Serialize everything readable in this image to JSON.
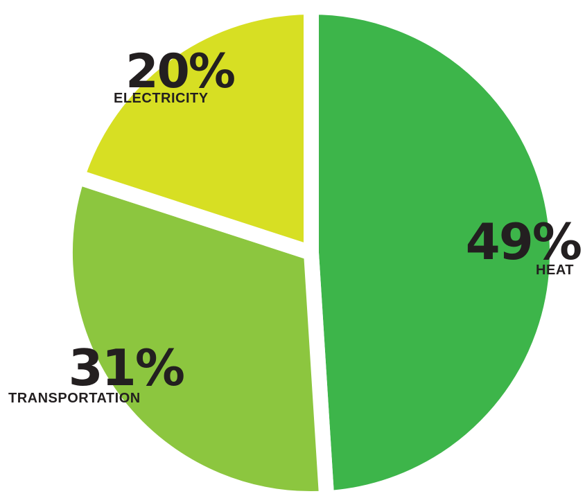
{
  "chart_data": {
    "type": "pie",
    "slices": [
      {
        "label": "HEAT",
        "value": 49,
        "value_label": "49%",
        "color": "#3db54a"
      },
      {
        "label": "TRANSPORTATION",
        "value": 31,
        "value_label": "31%",
        "color": "#8cc63f"
      },
      {
        "label": "ELECTRICITY",
        "value": 20,
        "value_label": "20%",
        "color": "#d7df23"
      }
    ],
    "start_angle_deg": 0,
    "direction": "clockwise",
    "exploded": true
  }
}
